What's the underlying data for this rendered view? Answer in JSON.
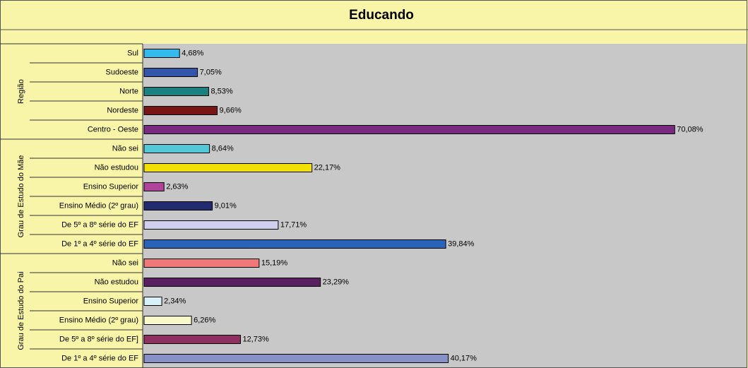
{
  "chart_data": {
    "type": "bar",
    "orientation": "horizontal",
    "title": "Educando",
    "groups": [
      {
        "name": "Região",
        "categories": [
          "Sul",
          "Sudoeste",
          "Norte",
          "Nordeste",
          "Centro - Oeste"
        ],
        "values": [
          4.68,
          7.05,
          8.53,
          9.66,
          70.08
        ],
        "value_labels": [
          "4,68%",
          "7,05%",
          "8,53%",
          "9,66%",
          "70,08%"
        ],
        "colors": [
          "#33bbee",
          "#3355aa",
          "#1a8080",
          "#7a1515",
          "#7a2a80"
        ]
      },
      {
        "name": "Grau de Estudo do Mãe",
        "categories": [
          "Não sei",
          "Não estudou",
          "Ensino Superior",
          "Ensino Médio (2º grau)",
          "De 5º a 8º série do EF",
          "De 1º a 4º série do EF"
        ],
        "values": [
          8.64,
          22.17,
          2.63,
          9.01,
          17.71,
          39.84
        ],
        "value_labels": [
          "8,64%",
          "22,17%",
          "2,63%",
          "9,01%",
          "17,71%",
          "39,84%"
        ],
        "colors": [
          "#55c8d8",
          "#f2e000",
          "#b0449a",
          "#222a70",
          "#d0d0ee",
          "#2a64b8"
        ]
      },
      {
        "name": "Grau de Estudo do Pai",
        "categories": [
          "Não sei",
          "Não estudou",
          "Ensino Superior",
          "Ensino Médio (2º grau)",
          "De 5º a 8º série do EF]",
          "De 1º a 4º série do EF"
        ],
        "values": [
          15.19,
          23.29,
          2.34,
          6.26,
          12.73,
          40.17
        ],
        "value_labels": [
          "15,19%",
          "23,29%",
          "2,34%",
          "6,26%",
          "12,73%",
          "40,17%"
        ],
        "colors": [
          "#f07878",
          "#5a1f60",
          "#d8f0f8",
          "#f8f8c8",
          "#903060",
          "#8890c8"
        ]
      }
    ]
  }
}
